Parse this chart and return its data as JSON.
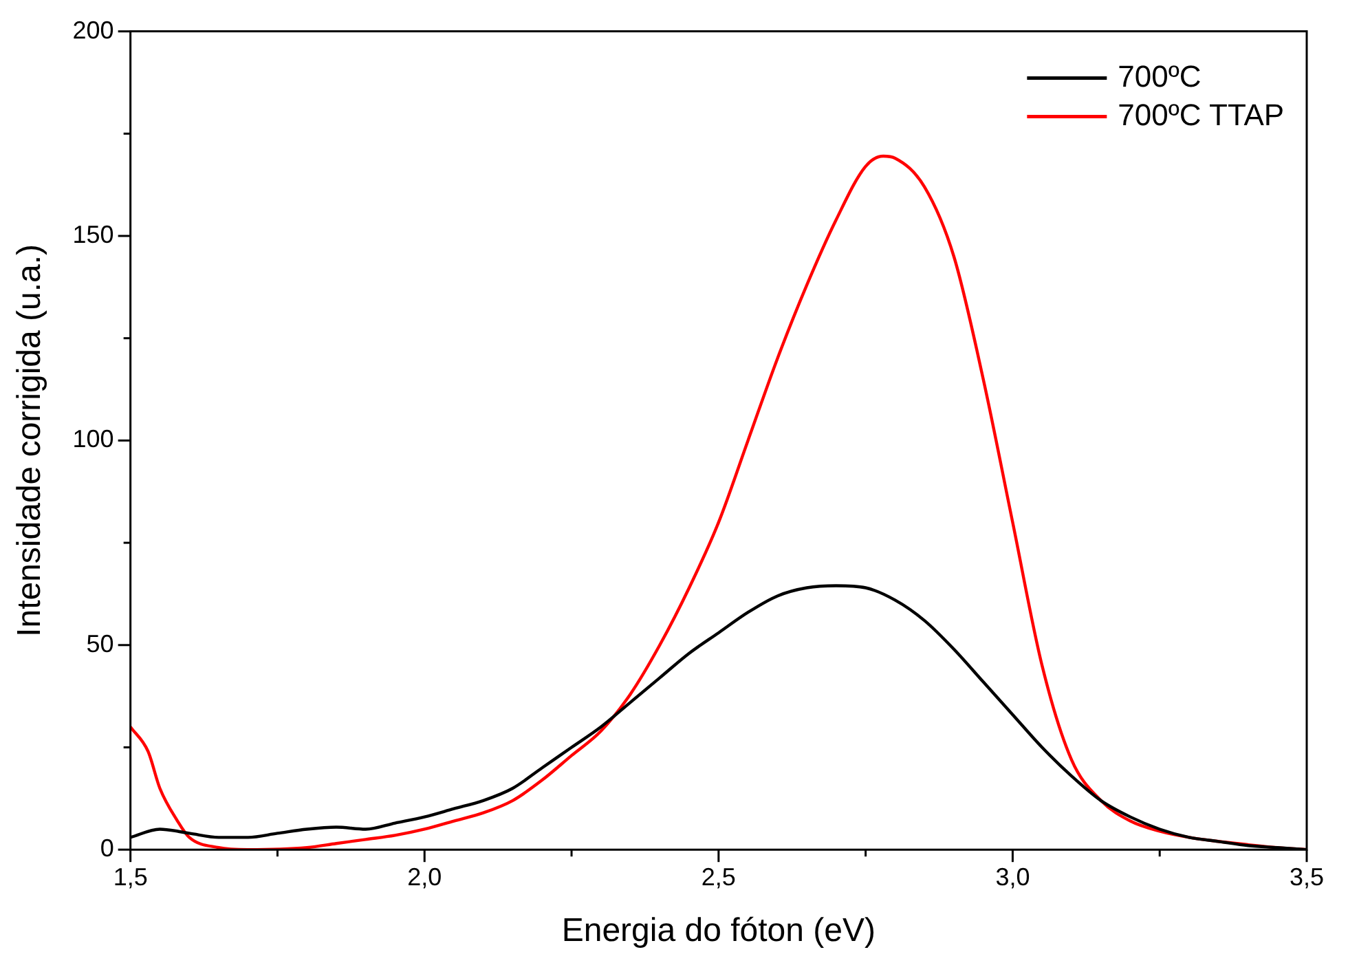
{
  "chart_data": {
    "type": "line",
    "xlabel": "Energia do fóton (eV)",
    "ylabel": "Intensidade corrigida (u.a.)",
    "xlim": [
      1.5,
      3.5
    ],
    "ylim": [
      0,
      200
    ],
    "xticks": [
      {
        "value": 1.5,
        "label": "1,5"
      },
      {
        "value": 1.75,
        "label": null
      },
      {
        "value": 2.0,
        "label": "2,0"
      },
      {
        "value": 2.25,
        "label": null
      },
      {
        "value": 2.5,
        "label": "2,5"
      },
      {
        "value": 2.75,
        "label": null
      },
      {
        "value": 3.0,
        "label": "3,0"
      },
      {
        "value": 3.25,
        "label": null
      },
      {
        "value": 3.5,
        "label": "3,5"
      }
    ],
    "yticks": [
      0,
      {
        "value": 25,
        "label": null
      },
      50,
      {
        "value": 75,
        "label": null
      },
      100,
      {
        "value": 125,
        "label": null
      },
      150,
      {
        "value": 175,
        "label": null
      },
      200
    ],
    "grid": false,
    "legend": "top right",
    "marker": "none",
    "line_style": "solid",
    "series": [
      {
        "name": "700ºC",
        "color": "#000000",
        "x": [
          1.5,
          1.55,
          1.6,
          1.65,
          1.7,
          1.75,
          1.8,
          1.85,
          1.9,
          1.95,
          2.0,
          2.05,
          2.1,
          2.15,
          2.2,
          2.25,
          2.3,
          2.35,
          2.4,
          2.45,
          2.5,
          2.55,
          2.6,
          2.65,
          2.7,
          2.75,
          2.8,
          2.85,
          2.9,
          2.95,
          3.0,
          3.05,
          3.1,
          3.15,
          3.2,
          3.25,
          3.3,
          3.35,
          3.4,
          3.45,
          3.5
        ],
        "values": [
          3,
          5,
          4,
          3,
          3,
          4,
          5,
          5.5,
          5,
          6.5,
          8,
          10,
          12,
          15,
          20,
          25,
          30,
          36,
          42,
          48,
          53,
          58,
          62,
          64,
          64.5,
          64,
          61,
          56,
          49,
          41,
          33,
          25,
          18,
          12,
          8,
          5,
          3,
          2,
          1,
          0.5,
          0
        ]
      },
      {
        "name": "700ºC TTAP",
        "color": "#ff0000",
        "x": [
          1.5,
          1.53,
          1.55,
          1.58,
          1.6,
          1.65,
          1.7,
          1.8,
          1.85,
          1.9,
          1.95,
          2.0,
          2.05,
          2.1,
          2.15,
          2.2,
          2.25,
          2.3,
          2.35,
          2.4,
          2.45,
          2.5,
          2.55,
          2.6,
          2.65,
          2.7,
          2.75,
          2.78,
          2.8,
          2.85,
          2.9,
          2.95,
          3.0,
          3.05,
          3.1,
          3.15,
          3.2,
          3.25,
          3.3,
          3.35,
          3.4,
          3.45,
          3.5
        ],
        "values": [
          30,
          24,
          15,
          7,
          3,
          0.5,
          0,
          0.5,
          1.5,
          2.5,
          3.5,
          5,
          7,
          9,
          12,
          17,
          23,
          29,
          38,
          50,
          64,
          80,
          100,
          120,
          138,
          154,
          167,
          169.5,
          169,
          162,
          145,
          115,
          80,
          45,
          22,
          12,
          7,
          4.5,
          3,
          2,
          1.2,
          0.5,
          0
        ]
      }
    ]
  }
}
